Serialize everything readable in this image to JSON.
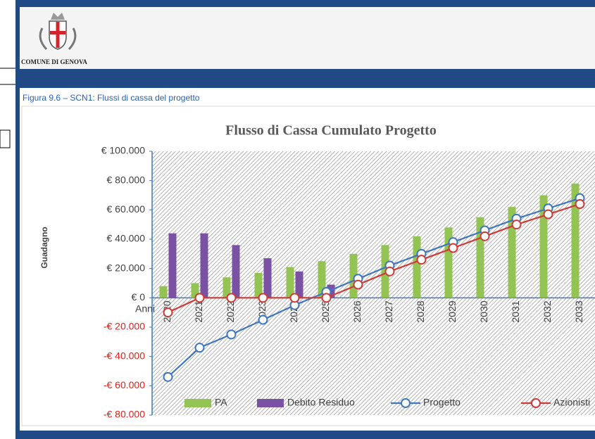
{
  "header": {
    "org": "COMUNE DI GENOVA"
  },
  "caption": "Figura 9.6 – SCN1: Flussi di cassa del progetto",
  "chart_data": {
    "type": "bar_line",
    "title": "Flusso di Cassa Cumulato Progetto",
    "y_label": "Guadagno",
    "x_label": "Anni",
    "categories": [
      "2020",
      "2021",
      "2022",
      "2023",
      "2024",
      "2025",
      "2026",
      "2027",
      "2028",
      "2029",
      "2030",
      "2031",
      "2032",
      "2033"
    ],
    "series": [
      {
        "name": "PA",
        "kind": "bar",
        "color": "#92c353",
        "values": [
          8000,
          10000,
          14000,
          17000,
          21000,
          25000,
          30000,
          36000,
          42000,
          48000,
          55000,
          62000,
          70000,
          78000
        ]
      },
      {
        "name": "Debito Residuo",
        "kind": "bar",
        "color": "#7b52a3",
        "values": [
          44000,
          44000,
          36000,
          27000,
          18000,
          9000,
          0,
          0,
          0,
          0,
          0,
          0,
          0,
          0
        ]
      },
      {
        "name": "Progetto",
        "kind": "line",
        "color": "#3f76c0",
        "values": [
          -54000,
          -34000,
          -25000,
          -15000,
          -5000,
          4000,
          13000,
          22000,
          30000,
          38000,
          46000,
          54000,
          61000,
          68000
        ]
      },
      {
        "name": "Azionisti",
        "kind": "line",
        "color": "#d03a36",
        "values": [
          -10000,
          0,
          0,
          0,
          0,
          0,
          9000,
          18000,
          26000,
          34000,
          42000,
          50000,
          57000,
          64000
        ]
      }
    ],
    "ylim": [
      -80000,
      100000
    ],
    "yticks": [
      {
        "value": -80000,
        "label": "-€ 80.000"
      },
      {
        "value": -60000,
        "label": "-€ 60.000"
      },
      {
        "value": -40000,
        "label": "-€ 40.000"
      },
      {
        "value": -20000,
        "label": "-€ 20.000"
      },
      {
        "value": 0,
        "label": "€ 0"
      },
      {
        "value": 20000,
        "label": "€ 20.000"
      },
      {
        "value": 40000,
        "label": "€ 40.000"
      },
      {
        "value": 60000,
        "label": "€ 60.000"
      },
      {
        "value": 80000,
        "label": "€ 80.000"
      },
      {
        "value": 100000,
        "label": "€ 100.000"
      }
    ],
    "legend": "bottom"
  }
}
